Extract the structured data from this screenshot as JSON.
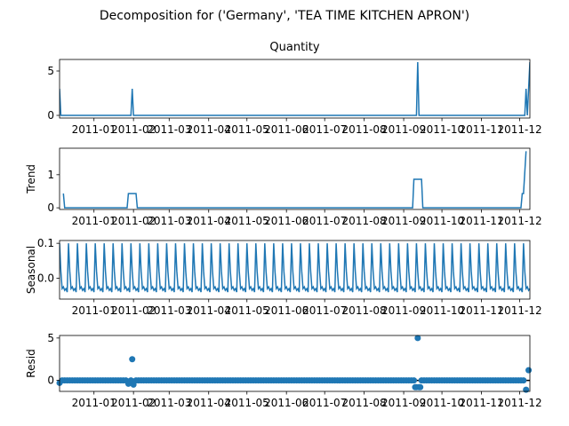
{
  "figure_title": "Decomposition for ('Germany', 'TEA TIME KITCHEN APRON')",
  "line_color": "#1f77b4",
  "x_tick_labels": [
    "2011-01",
    "2011-02",
    "2011-03",
    "2011-04",
    "2011-05",
    "2011-06",
    "2011-07",
    "2011-08",
    "2011-09",
    "2011-10",
    "2011-11",
    "2011-12"
  ],
  "chart_data": [
    {
      "type": "line",
      "title": "Quantity",
      "ylabel": "",
      "ylim": [
        -0.3,
        6.3
      ],
      "yticks": [
        0,
        5
      ],
      "ytick_labels": [
        "0",
        "5"
      ],
      "x_range": [
        "2010-12-05",
        "2011-12-09"
      ],
      "x": [
        "2010-12-05",
        "2010-12-06",
        "2011-01-30",
        "2011-01-31",
        "2011-02-01",
        "2011-09-11",
        "2011-09-12",
        "2011-09-13",
        "2011-12-05",
        "2011-12-06",
        "2011-12-07",
        "2011-12-08",
        "2011-12-09"
      ],
      "values": [
        3,
        0,
        0,
        3,
        0,
        0,
        6,
        0,
        0,
        3,
        0,
        3,
        6
      ]
    },
    {
      "type": "line",
      "title": "",
      "ylabel": "Trend",
      "ylim": [
        -0.05,
        1.8
      ],
      "yticks": [
        0,
        1
      ],
      "ytick_labels": [
        "0",
        "1"
      ],
      "x_range": [
        "2010-12-05",
        "2011-12-09"
      ],
      "x": [
        "2010-12-08",
        "2010-12-09",
        "2011-01-27",
        "2011-01-28",
        "2011-02-03",
        "2011-02-04",
        "2011-09-08",
        "2011-09-09",
        "2011-09-15",
        "2011-09-16",
        "2011-12-02",
        "2011-12-03",
        "2011-12-04",
        "2011-12-06"
      ],
      "values": [
        0.43,
        0,
        0,
        0.43,
        0.43,
        0,
        0,
        0.86,
        0.86,
        0,
        0,
        0.43,
        0.43,
        1.71
      ]
    },
    {
      "type": "line",
      "title": "",
      "ylabel": "Seasonal",
      "ylim": [
        -0.06,
        0.108
      ],
      "yticks": [
        0.0,
        0.1
      ],
      "ytick_labels": [
        "0.0",
        "0.1"
      ],
      "x_range": [
        "2010-12-05",
        "2011-12-09"
      ],
      "period_days": 7,
      "weekly_pattern": [
        0.1,
        0.02,
        -0.03,
        -0.025,
        -0.035,
        -0.03,
        -0.04
      ]
    },
    {
      "type": "scatter",
      "title": "",
      "ylabel": "Resid",
      "ylim": [
        -1.3,
        5.3
      ],
      "yticks": [
        0,
        5
      ],
      "ytick_labels": [
        "0",
        "5"
      ],
      "x_range": [
        "2010-12-05",
        "2011-12-09"
      ],
      "baseline": 0,
      "outliers": [
        {
          "x": "2010-12-05",
          "y": -0.3
        },
        {
          "x": "2011-01-28",
          "y": -0.4
        },
        {
          "x": "2011-01-31",
          "y": 2.5
        },
        {
          "x": "2011-02-01",
          "y": -0.5
        },
        {
          "x": "2011-09-10",
          "y": -0.8
        },
        {
          "x": "2011-09-11",
          "y": -0.8
        },
        {
          "x": "2011-09-12",
          "y": 5.0
        },
        {
          "x": "2011-09-13",
          "y": -0.8
        },
        {
          "x": "2011-09-14",
          "y": -0.8
        },
        {
          "x": "2011-12-06",
          "y": -1.1
        },
        {
          "x": "2011-12-08",
          "y": 1.2
        }
      ]
    }
  ]
}
